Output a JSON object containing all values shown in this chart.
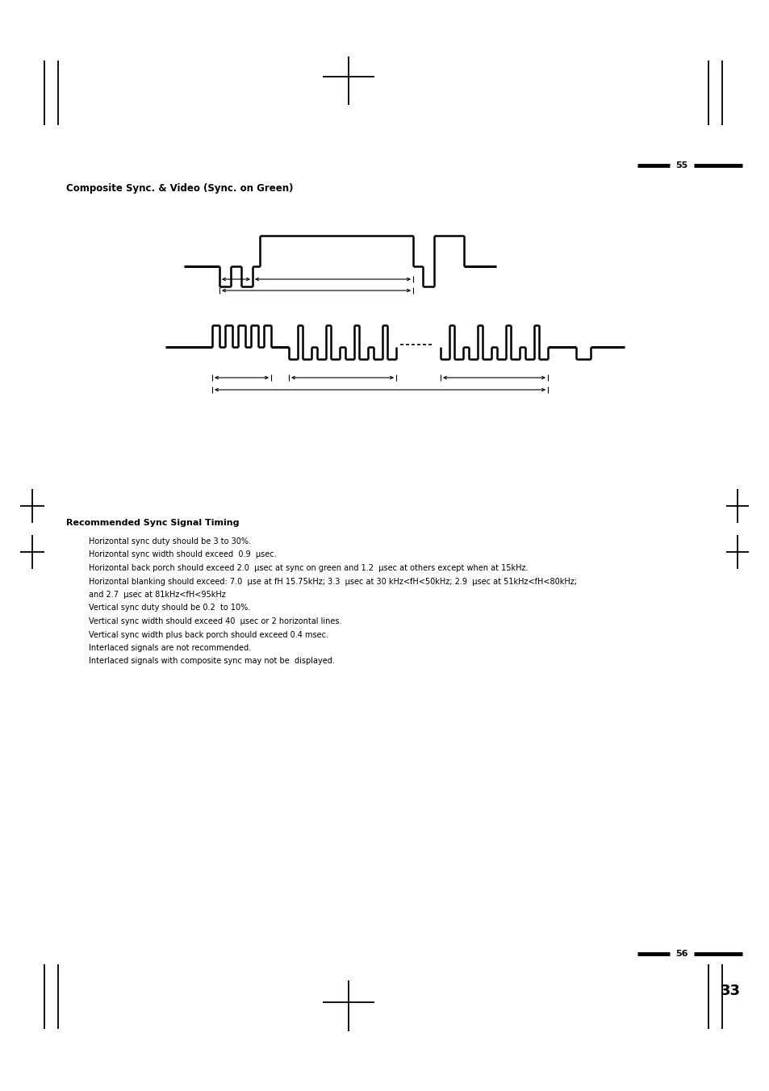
{
  "page_bg": "#ffffff",
  "title_text": "Composite Sync. & Video (Sync. on Green)",
  "title_fontsize": 8.5,
  "section_title": "Recommended Sync Signal Timing",
  "section_title_fontsize": 8.0,
  "body_lines": [
    "Horizontal sync duty should be 3 to 30%.",
    "Horizontal sync width should exceed  0.9  μsec.",
    "Horizontal back porch should exceed 2.0  μsec at sync on green and 1.2  μsec at others except when at 15kHz.",
    "Horizontal blanking should exceed: 7.0  μse at fH 15.75kHz; 3.3  μsec at 30 kHz<fH<50kHz; 2.9  μsec at 51kHz<fH<80kHz;",
    "and 2.7  μsec at 81kHz<fH<95kHz",
    "Vertical sync duty should be 0.2  to 10%.",
    "Vertical sync width should exceed 40  μsec or 2 horizontal lines.",
    "Vertical sync width plus back porch should exceed 0.4 msec.",
    "Interlaced signals are not recommended.",
    "Interlaced signals with composite sync may not be  displayed."
  ],
  "body_fontsize": 7.0,
  "page_num_top": "55",
  "page_num_bottom": "56",
  "page_num_33": "33"
}
